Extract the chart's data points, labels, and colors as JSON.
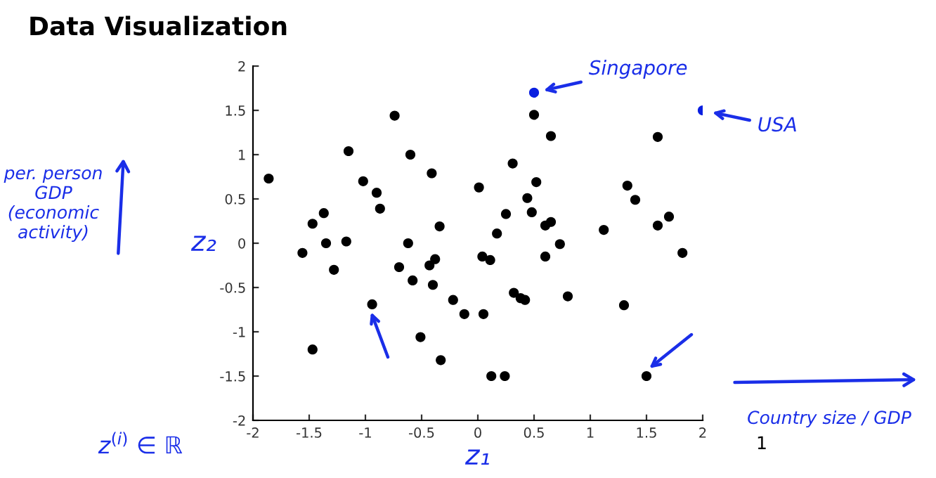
{
  "chart_data": {
    "type": "scatter",
    "title": "Data Visualization",
    "xlabel": "z₁",
    "ylabel": "z₂",
    "series": [
      {
        "color": "#000000",
        "x": [
          -1.86,
          -0.74,
          -1.15,
          -0.6,
          -0.41,
          -1.02,
          -0.9,
          -0.87,
          -1.37,
          -1.47,
          -0.34,
          -1.35,
          -1.17,
          -0.62,
          -1.56,
          -1.28,
          -0.7,
          -0.38,
          -0.43,
          -0.58,
          -0.4,
          -0.22,
          -0.94,
          -0.12,
          0.05,
          -0.51,
          -1.47,
          -0.33,
          0.5,
          0.65,
          0.31,
          0.01,
          0.52,
          0.44,
          0.48,
          0.25,
          0.65,
          0.6,
          0.17,
          0.73,
          0.04,
          0.11,
          0.6,
          0.32,
          0.38,
          0.42,
          0.8,
          0.12,
          0.24,
          1.5,
          1.3,
          1.12,
          1.33,
          1.4,
          1.6,
          1.7,
          1.6,
          1.82
        ],
        "values": [
          0.73,
          1.44,
          1.04,
          1.0,
          0.79,
          0.7,
          0.57,
          0.39,
          0.34,
          0.22,
          0.19,
          0.0,
          0.02,
          0.0,
          -0.11,
          -0.3,
          -0.27,
          -0.18,
          -0.25,
          -0.42,
          -0.47,
          -0.64,
          -0.69,
          -0.8,
          -0.8,
          -1.06,
          -1.2,
          -1.32,
          1.45,
          1.21,
          0.9,
          0.63,
          0.69,
          0.51,
          0.35,
          0.33,
          0.24,
          0.2,
          0.11,
          -0.01,
          -0.15,
          -0.19,
          -0.15,
          -0.56,
          -0.62,
          -0.64,
          -0.6,
          -1.5,
          -1.5,
          -1.5,
          -0.7,
          0.15,
          0.65,
          0.49,
          1.2,
          0.3,
          0.2,
          -0.11
        ]
      },
      {
        "color": "#0a1fe0",
        "x": [
          0.5,
          2.0
        ],
        "values": [
          1.7,
          1.5
        ]
      }
    ],
    "xlim": [
      -2,
      2
    ],
    "ylim": [
      -2,
      2
    ],
    "xticks": [
      -2,
      -1.5,
      -1,
      -0.5,
      0,
      0.5,
      1,
      1.5,
      2
    ],
    "yticks": [
      -2,
      -1.5,
      -1,
      -0.5,
      0,
      0.5,
      1,
      1.5,
      2
    ],
    "marker": "circle",
    "grid": false,
    "legend": false,
    "annotations": [
      {
        "text": "Singapore",
        "x": 0.5,
        "y": 1.7
      },
      {
        "text": "USA",
        "x": 2.0,
        "y": 1.5
      },
      "per. person\nGDP\n(economic\nactivity)",
      "Country size / GDP",
      "z$^{(i)}$ ∈ ℝ",
      "1"
    ]
  }
}
